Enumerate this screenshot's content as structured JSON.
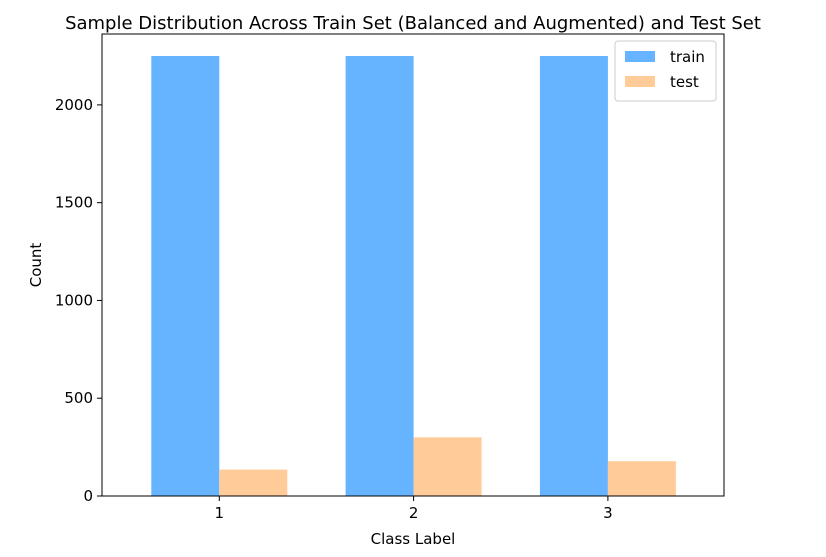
{
  "chart_data": {
    "type": "bar",
    "title": "Sample Distribution Across Train Set (Balanced and Augmented) and Test Set",
    "xlabel": "Class Label",
    "ylabel": "Count",
    "categories": [
      "1",
      "2",
      "3"
    ],
    "series": [
      {
        "name": "train",
        "values": [
          2250,
          2250,
          2250
        ],
        "color": "#66b3ff"
      },
      {
        "name": "test",
        "values": [
          135,
          300,
          178
        ],
        "color": "#ffcc99"
      }
    ],
    "ylim": [
      0,
      2362.5
    ],
    "yticks": [
      0,
      500,
      1000,
      1500,
      2000
    ],
    "legend_position": "top-right",
    "grid": false
  }
}
